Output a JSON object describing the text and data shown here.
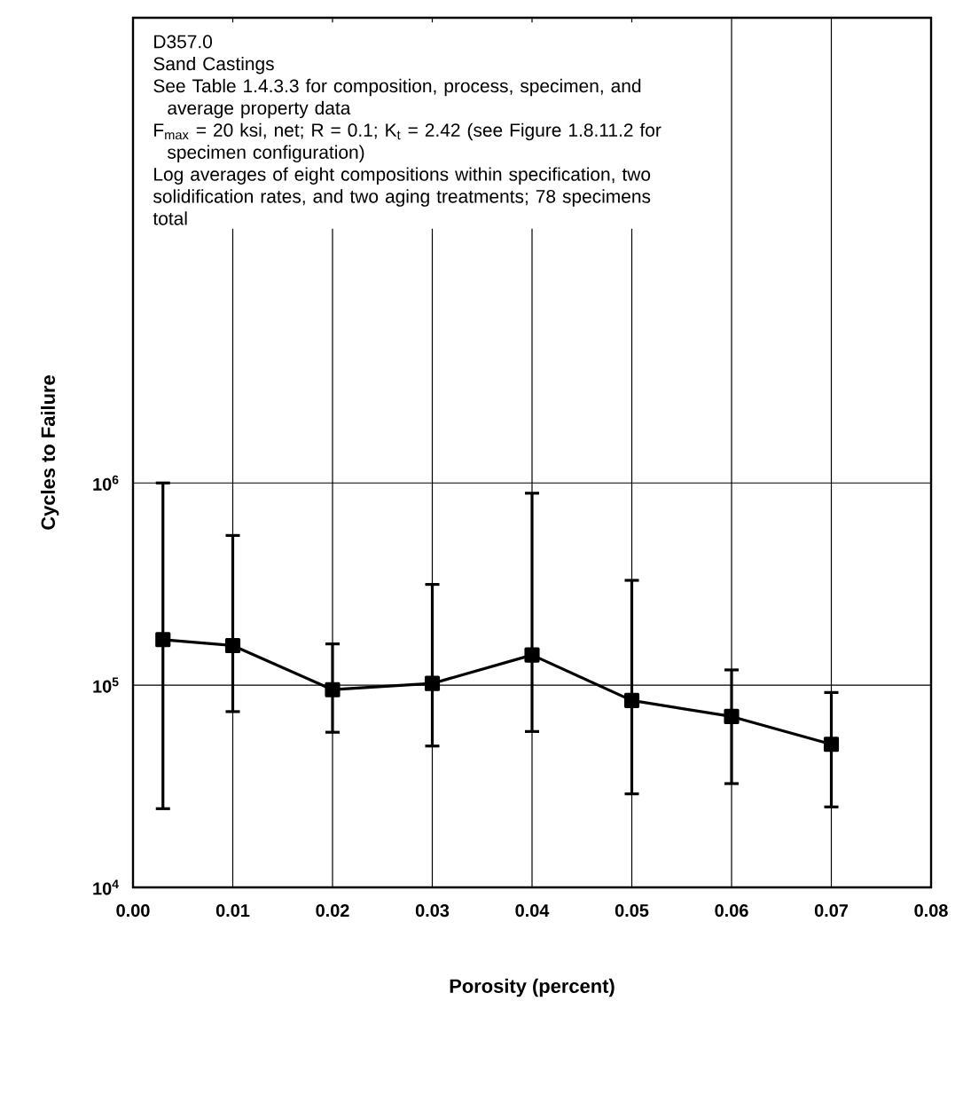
{
  "chart_data": {
    "type": "line",
    "xlabel": "Porosity (percent)",
    "ylabel": "Cycles to Failure",
    "x": [
      0.003,
      0.01,
      0.02,
      0.03,
      0.04,
      0.05,
      0.06,
      0.07
    ],
    "series": [
      {
        "color": "#000000",
        "values": [
          168000,
          157000,
          95000,
          102000,
          141000,
          84000,
          70000,
          51000
        ],
        "errors": [
          [
            24500,
            1000000
          ],
          [
            74000,
            550000
          ],
          [
            58500,
            160000
          ],
          [
            50000,
            315000
          ],
          [
            59000,
            890000
          ],
          [
            29000,
            330000
          ],
          [
            32600,
            119000
          ],
          [
            25000,
            92000
          ]
        ]
      }
    ],
    "xlim": [
      0.0,
      0.08
    ],
    "xticks": [
      {
        "value": 0.0,
        "label": "0.00"
      },
      {
        "value": 0.01,
        "label": "0.01"
      },
      {
        "value": 0.02,
        "label": "0.02"
      },
      {
        "value": 0.03,
        "label": "0.03"
      },
      {
        "value": 0.04,
        "label": "0.04"
      },
      {
        "value": 0.05,
        "label": "0.05"
      },
      {
        "value": 0.06,
        "label": "0.06"
      },
      {
        "value": 0.07,
        "label": "0.07"
      },
      {
        "value": 0.08,
        "label": "0.08"
      }
    ],
    "ylim": [
      10000,
      200000000
    ],
    "yticks": [
      {
        "value": 10000,
        "label": "10$^{4}$"
      },
      {
        "value": 100000,
        "label": "10$^{5}$"
      },
      {
        "value": 1000000,
        "label": "10$^{6}$"
      }
    ],
    "log": "y",
    "grid": true,
    "marker": "square",
    "line_style": "solid",
    "annotations": [
      "D357.0",
      "Sand Castings",
      "See Table 1.4.3.3 for composition, process, specimen, and average property data",
      "F$_{max}$ = 20 ksi, net; R = 0.1; K$_{t}$ = 2.42 (see Figure 1.8.11.2 for specimen configuration)",
      "Log averages of eight compositions within specification, two solidification rates, and two aging treatments; 78 specimens total"
    ]
  }
}
